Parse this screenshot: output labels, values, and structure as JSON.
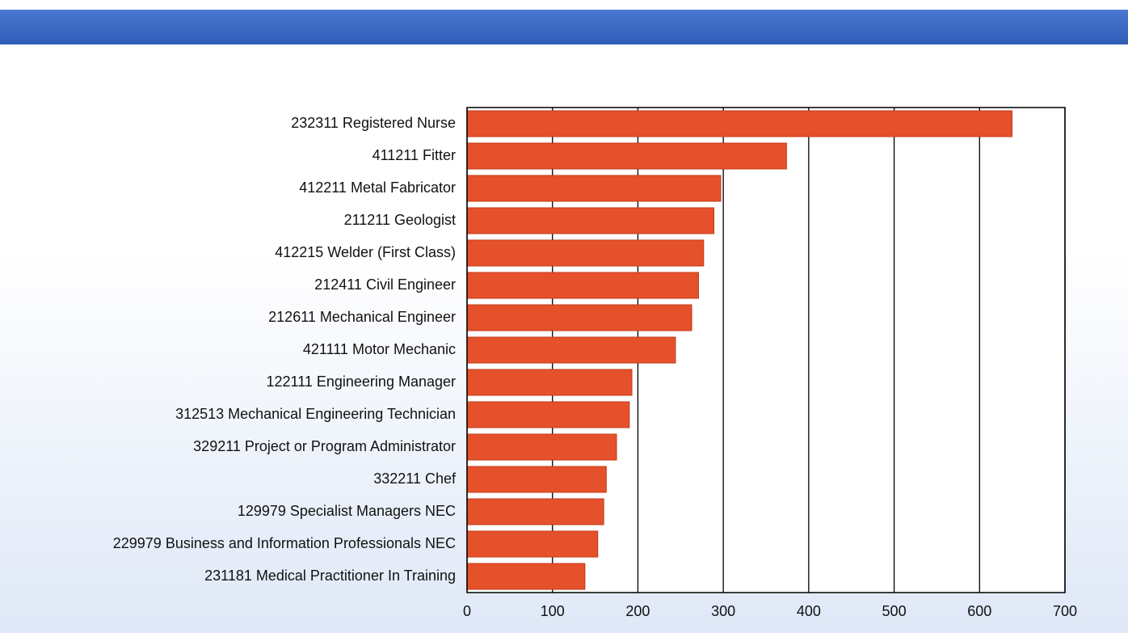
{
  "chart_data": {
    "type": "bar",
    "orientation": "horizontal",
    "categories": [
      "232311 Registered Nurse",
      "411211 Fitter",
      "412211 Metal Fabricator",
      "211211 Geologist",
      "412215 Welder (First Class)",
      "212411 Civil Engineer",
      "212611 Mechanical Engineer",
      "421111 Motor Mechanic",
      "122111 Engineering Manager",
      "312513 Mechanical Engineering Technician",
      "329211 Project or Program Administrator",
      "332211 Chef",
      "129979 Specialist Managers NEC",
      "229979 Business and Information Professionals NEC",
      "231181 Medical Practitioner In Training"
    ],
    "values": [
      638,
      374,
      297,
      289,
      277,
      271,
      263,
      244,
      193,
      190,
      175,
      163,
      160,
      153,
      138
    ],
    "color": "#e5512b",
    "xlim": [
      0,
      700
    ],
    "xticks": [
      0,
      100,
      200,
      300,
      400,
      500,
      600,
      700
    ],
    "grid": true
  }
}
